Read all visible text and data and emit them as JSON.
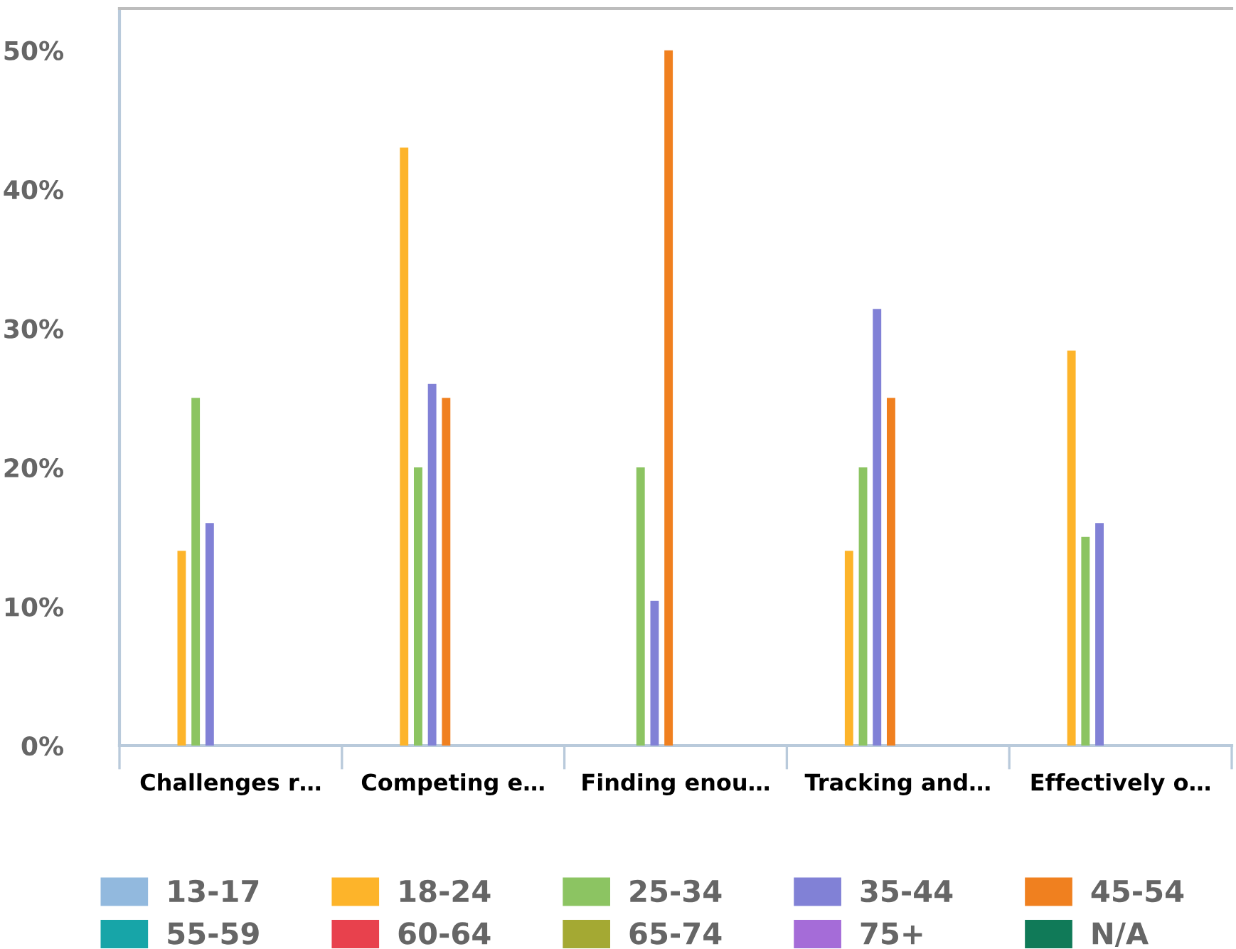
{
  "chart_data": {
    "type": "bar",
    "categories": [
      "Challenges r…",
      "Competing e…",
      "Finding enou…",
      "Tracking and…",
      "Effectively o…"
    ],
    "series": [
      {
        "name": "13-17",
        "color": "#92b9de",
        "values": [
          null,
          null,
          null,
          null,
          null
        ]
      },
      {
        "name": "18-24",
        "color": "#fdb42a",
        "values": [
          14,
          43,
          null,
          14,
          28.4
        ]
      },
      {
        "name": "25-34",
        "color": "#8cc462",
        "values": [
          25,
          20,
          20,
          20,
          15
        ]
      },
      {
        "name": "35-44",
        "color": "#8181d6",
        "values": [
          16,
          26,
          10.4,
          31.4,
          16
        ]
      },
      {
        "name": "45-54",
        "color": "#f0801f",
        "values": [
          null,
          25,
          50,
          25,
          null
        ]
      },
      {
        "name": "55-59",
        "color": "#17a5a8",
        "values": [
          null,
          null,
          null,
          null,
          null
        ]
      },
      {
        "name": "60-64",
        "color": "#e8414d",
        "values": [
          null,
          null,
          null,
          null,
          null
        ]
      },
      {
        "name": "65-74",
        "color": "#a4a933",
        "values": [
          null,
          null,
          null,
          null,
          null
        ]
      },
      {
        "name": "75+",
        "color": "#a56cd8",
        "values": [
          null,
          null,
          null,
          null,
          null
        ]
      },
      {
        "name": "N/A",
        "color": "#107a58",
        "values": [
          null,
          null,
          null,
          null,
          null
        ]
      }
    ],
    "ylim": [
      0,
      53
    ],
    "yticks": [
      {
        "value": 0,
        "label": "0%"
      },
      {
        "value": 10,
        "label": "10%"
      },
      {
        "value": 20,
        "label": "20%"
      },
      {
        "value": 30,
        "label": "30%"
      },
      {
        "value": 40,
        "label": "40%"
      },
      {
        "value": 50,
        "label": "50%"
      }
    ],
    "grid": false,
    "legend": "bottom"
  }
}
